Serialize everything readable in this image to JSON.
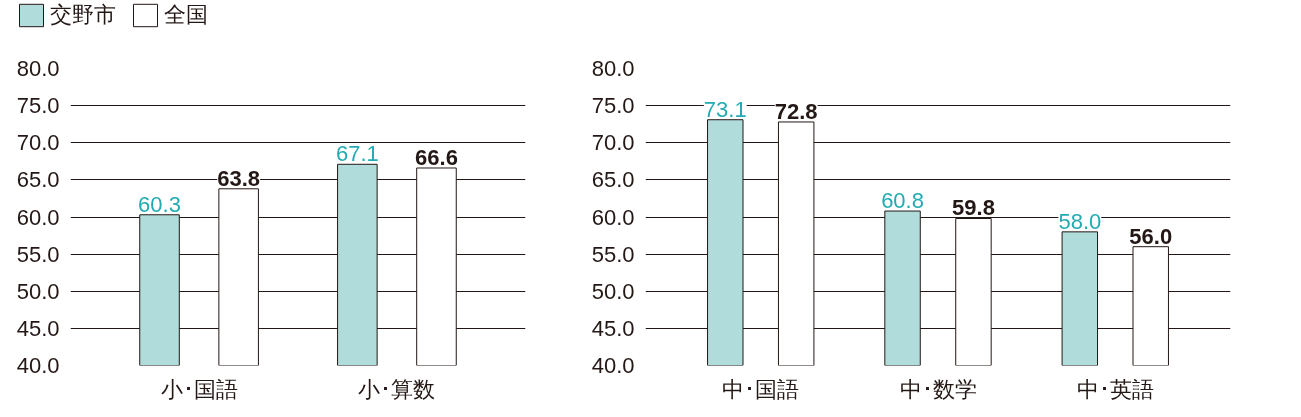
{
  "chart_data": [
    {
      "type": "bar",
      "categories": [
        "小･国語",
        "小･算数"
      ],
      "series": [
        {
          "name": "交野市",
          "color": "#b0dcdb",
          "values": [
            60.3,
            67.1
          ],
          "value_labels": [
            "60.3",
            "67.1"
          ]
        },
        {
          "name": "全国",
          "color": "#ffffff",
          "values": [
            63.8,
            66.6
          ],
          "value_labels": [
            "63.8",
            "66.6"
          ]
        }
      ],
      "ylim": [
        40,
        80
      ],
      "yticks": [
        {
          "value": 40,
          "label": "40.0"
        },
        {
          "value": 45,
          "label": "45.0"
        },
        {
          "value": 50,
          "label": "50.0"
        },
        {
          "value": 55,
          "label": "55.0"
        },
        {
          "value": 60,
          "label": "60.0"
        },
        {
          "value": 65,
          "label": "65.0"
        },
        {
          "value": 70,
          "label": "70.0"
        },
        {
          "value": 75,
          "label": "75.0"
        },
        {
          "value": 80,
          "label": "80.0"
        }
      ],
      "grid": "y",
      "legend": "top left"
    },
    {
      "type": "bar",
      "categories": [
        "中･国語",
        "中･数学",
        "中･英語"
      ],
      "series": [
        {
          "color": "#b0dcdb",
          "values": [
            73.1,
            60.8,
            58.0
          ],
          "value_labels": [
            "73.1",
            "60.8",
            "58.0"
          ]
        },
        {
          "color": "#ffffff",
          "values": [
            72.8,
            59.8,
            56.0
          ],
          "value_labels": [
            "72.8",
            "59.8",
            "56.0"
          ]
        }
      ],
      "ylim": [
        40,
        80
      ],
      "yticks": [
        {
          "value": 40,
          "label": "40.0"
        },
        {
          "value": 45,
          "label": "45.0"
        },
        {
          "value": 50,
          "label": "50.0"
        },
        {
          "value": 55,
          "label": "55.0"
        },
        {
          "value": 60,
          "label": "60.0"
        },
        {
          "value": 65,
          "label": "65.0"
        },
        {
          "value": 70,
          "label": "70.0"
        },
        {
          "value": 75,
          "label": "75.0"
        },
        {
          "value": 80,
          "label": "80.0"
        }
      ],
      "grid": "y"
    }
  ]
}
